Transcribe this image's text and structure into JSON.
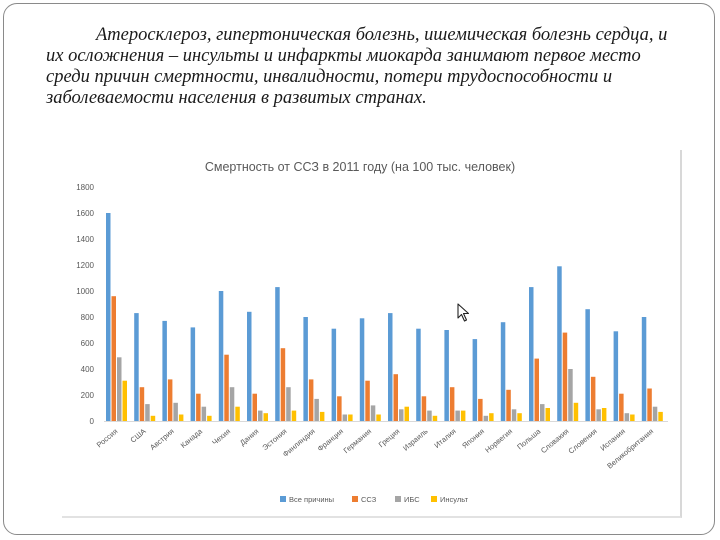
{
  "slide": {
    "paragraph": "Атеросклероз, гипертоническая болезнь, ишемическая болезнь сердца, и их осложнения – инсульты и инфаркты миокарда занимают первое место среди причин смертности, инвалидности, потери трудоспособности и заболеваемости населения в развитых странах."
  },
  "chart_data": {
    "type": "bar",
    "title": "Смертность от ССЗ в 2011 году (на 100 тыс. человек)",
    "xlabel": "",
    "ylabel": "",
    "ylim": [
      0,
      1800
    ],
    "yticks": [
      0,
      200,
      400,
      600,
      800,
      1000,
      1200,
      1400,
      1600,
      1800
    ],
    "grid": false,
    "legend_position": "bottom",
    "categories": [
      "Россия",
      "США",
      "Австрия",
      "Канада",
      "Чехия",
      "Дания",
      "Эстония",
      "Финляндия",
      "Франция",
      "Германия",
      "Греция",
      "Израиль",
      "Италия",
      "Япония",
      "Норвегия",
      "Польша",
      "Словакия",
      "Словения",
      "Испания",
      "Великобритания"
    ],
    "series": [
      {
        "name": "Все причины",
        "color": "#5b9bd5",
        "values": [
          1600,
          830,
          770,
          720,
          1000,
          840,
          1030,
          800,
          710,
          790,
          830,
          710,
          700,
          630,
          760,
          1030,
          1190,
          860,
          690,
          800
        ]
      },
      {
        "name": "ССЗ",
        "color": "#ed7d31",
        "values": [
          960,
          260,
          320,
          210,
          510,
          210,
          560,
          320,
          190,
          310,
          360,
          190,
          260,
          170,
          240,
          480,
          680,
          340,
          210,
          250
        ]
      },
      {
        "name": "ИБС",
        "color": "#a5a5a5",
        "values": [
          490,
          130,
          140,
          110,
          260,
          80,
          260,
          170,
          50,
          120,
          90,
          80,
          80,
          40,
          90,
          130,
          400,
          90,
          60,
          110
        ]
      },
      {
        "name": "Инсульт",
        "color": "#ffc000",
        "values": [
          310,
          40,
          50,
          40,
          110,
          60,
          80,
          70,
          50,
          50,
          110,
          40,
          80,
          60,
          60,
          100,
          140,
          100,
          50,
          70
        ]
      }
    ]
  }
}
